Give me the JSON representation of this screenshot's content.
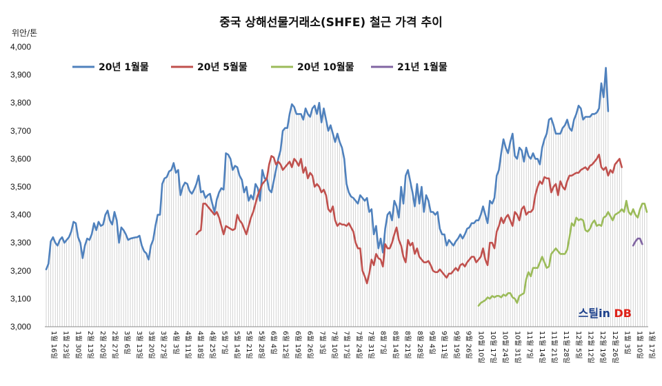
{
  "chart_data": {
    "type": "line",
    "title": "중국 상해선물거래소(SHFE) 철근 가격 추이",
    "unit_label": "위안/톤",
    "ylim": [
      3000,
      4000
    ],
    "yticks": [
      "3,000",
      "3,100",
      "3,200",
      "3,300",
      "3,400",
      "3,500",
      "3,600",
      "3,700",
      "3,800",
      "3,900",
      "4,000"
    ],
    "grid": "vertical-drop-lines",
    "legend_position": "top-left",
    "watermark": {
      "part1": "스틸in",
      "part2": " DB"
    },
    "x_tick_labels": [
      "1월 16일",
      "1월 23일",
      "1월 30일",
      "2월 13일",
      "2월 20일",
      "2월 27일",
      "3월 6일",
      "3월 13일",
      "3월 20일",
      "3월 27일",
      "4월 3일",
      "4월 11일",
      "4월 18일",
      "4월 25일",
      "5월 7일",
      "5월 14일",
      "5월 21일",
      "5월 28일",
      "6월 4일",
      "6월 12일",
      "6월 19일",
      "6월 26일",
      "7월 3일",
      "7월 10일",
      "7월 17일",
      "7월 24일",
      "7월 31일",
      "8월 7일",
      "8월 14일",
      "8월 21일",
      "8월 28일",
      "9월 4일",
      "9월 11일",
      "9월 19일",
      "9월 26일",
      "10월 10일",
      "10월 17일",
      "10월 24일",
      "10월 31일",
      "11월 7일",
      "11월 14일",
      "11월 21일",
      "11월 28일",
      "12월 5일",
      "12월 12일",
      "12월 19일",
      "12월 26일",
      "1월 3일",
      "1월 10일",
      "1월 17일"
    ],
    "series": [
      {
        "name": "20년 1월물",
        "color": "#4f81bd",
        "start_index": 0,
        "values": [
          3205,
          3225,
          3305,
          3320,
          3300,
          3290,
          3310,
          3320,
          3300,
          3310,
          3320,
          3340,
          3375,
          3370,
          3320,
          3300,
          3245,
          3290,
          3315,
          3310,
          3330,
          3370,
          3345,
          3375,
          3360,
          3365,
          3400,
          3415,
          3380,
          3365,
          3410,
          3380,
          3300,
          3355,
          3345,
          3330,
          3310,
          3315,
          3317,
          3319,
          3320,
          3325,
          3290,
          3270,
          3262,
          3240,
          3290,
          3310,
          3360,
          3400,
          3400,
          3510,
          3530,
          3535,
          3555,
          3560,
          3585,
          3550,
          3560,
          3470,
          3500,
          3515,
          3510,
          3485,
          3475,
          3490,
          3510,
          3540,
          3480,
          3485,
          3460,
          3470,
          3475,
          3440,
          3410,
          3455,
          3480,
          3495,
          3490,
          3620,
          3615,
          3600,
          3560,
          3575,
          3570,
          3540,
          3525,
          3480,
          3500,
          3450,
          3470,
          3455,
          3510,
          3495,
          3450,
          3560,
          3530,
          3530,
          3490,
          3480,
          3520,
          3560,
          3600,
          3630,
          3700,
          3710,
          3710,
          3760,
          3795,
          3785,
          3760,
          3760,
          3760,
          3740,
          3780,
          3760,
          3750,
          3780,
          3790,
          3760,
          3800,
          3730,
          3780,
          3740,
          3700,
          3720,
          3690,
          3660,
          3690,
          3660,
          3640,
          3600,
          3510,
          3480,
          3465,
          3460,
          3450,
          3440,
          3470,
          3460,
          3450,
          3460,
          3410,
          3420,
          3330,
          3360,
          3280,
          3315,
          3265,
          3350,
          3400,
          3410,
          3380,
          3450,
          3430,
          3390,
          3500,
          3440,
          3540,
          3560,
          3520,
          3480,
          3430,
          3510,
          3440,
          3500,
          3410,
          3470,
          3450,
          3410,
          3410,
          3400,
          3410,
          3350,
          3330,
          3330,
          3290,
          3310,
          3300,
          3290,
          3305,
          3315,
          3330,
          3315,
          3330,
          3350,
          3355,
          3370,
          3370,
          3380,
          3380,
          3400,
          3430,
          3400,
          3370,
          3450,
          3440,
          3460,
          3540,
          3560,
          3620,
          3670,
          3640,
          3620,
          3660,
          3690,
          3610,
          3600,
          3640,
          3630,
          3590,
          3640,
          3610,
          3600,
          3620,
          3600,
          3600,
          3580,
          3640,
          3670,
          3690,
          3740,
          3745,
          3720,
          3690,
          3690,
          3690,
          3710,
          3720,
          3740,
          3710,
          3700,
          3740,
          3760,
          3790,
          3780,
          3740,
          3750,
          3750,
          3750,
          3760,
          3760,
          3765,
          3780,
          3870,
          3820,
          3925,
          3770
        ]
      },
      {
        "name": "20년 5월물",
        "color": "#c0504d",
        "start_index": 66,
        "values": [
          3330,
          3340,
          3345,
          3440,
          3440,
          3430,
          3420,
          3410,
          3400,
          3410,
          3390,
          3360,
          3330,
          3360,
          3355,
          3350,
          3345,
          3350,
          3400,
          3380,
          3370,
          3350,
          3330,
          3360,
          3390,
          3410,
          3440,
          3470,
          3490,
          3510,
          3520,
          3530,
          3580,
          3610,
          3605,
          3580,
          3590,
          3580,
          3560,
          3570,
          3580,
          3590,
          3570,
          3600,
          3590,
          3575,
          3600,
          3550,
          3570,
          3530,
          3550,
          3540,
          3500,
          3510,
          3500,
          3480,
          3490,
          3470,
          3420,
          3410,
          3430,
          3380,
          3360,
          3370,
          3365,
          3365,
          3360,
          3370,
          3355,
          3340,
          3300,
          3280,
          3280,
          3200,
          3180,
          3155,
          3190,
          3240,
          3220,
          3260,
          3245,
          3240,
          3215,
          3295,
          3280,
          3280,
          3300,
          3330,
          3355,
          3310,
          3290,
          3250,
          3230,
          3310,
          3290,
          3300,
          3260,
          3280,
          3250,
          3240,
          3230,
          3230,
          3235,
          3220,
          3200,
          3195,
          3195,
          3205,
          3195,
          3185,
          3175,
          3190,
          3190,
          3200,
          3210,
          3200,
          3220,
          3225,
          3215,
          3230,
          3240,
          3250,
          3250,
          3230,
          3240,
          3250,
          3280,
          3240,
          3220,
          3300,
          3300,
          3280,
          3340,
          3360,
          3390,
          3370,
          3390,
          3400,
          3380,
          3360,
          3410,
          3400,
          3380,
          3420,
          3430,
          3400,
          3410,
          3410,
          3420,
          3470,
          3500,
          3520,
          3510,
          3535,
          3530,
          3530,
          3480,
          3500,
          3510,
          3470,
          3520,
          3500,
          3490,
          3520,
          3540,
          3540,
          3545,
          3550,
          3550,
          3560,
          3565,
          3570,
          3560,
          3575,
          3580,
          3590,
          3600,
          3615,
          3570,
          3560,
          3570,
          3540,
          3560,
          3550,
          3580,
          3590,
          3600,
          3570
        ]
      },
      {
        "name": "20년 10월물",
        "color": "#9bbb59",
        "start_index": 190,
        "values": [
          3075,
          3085,
          3090,
          3095,
          3105,
          3100,
          3110,
          3105,
          3110,
          3110,
          3105,
          3115,
          3110,
          3120,
          3120,
          3105,
          3100,
          3085,
          3110,
          3115,
          3120,
          3170,
          3195,
          3180,
          3210,
          3210,
          3210,
          3230,
          3250,
          3230,
          3210,
          3215,
          3260,
          3270,
          3280,
          3270,
          3260,
          3260,
          3260,
          3275,
          3320,
          3370,
          3360,
          3390,
          3380,
          3385,
          3380,
          3345,
          3340,
          3350,
          3370,
          3380,
          3360,
          3365,
          3360,
          3390,
          3395,
          3410,
          3395,
          3380,
          3400,
          3405,
          3410,
          3420,
          3410,
          3450,
          3410,
          3400,
          3420,
          3400,
          3390,
          3420,
          3440,
          3440,
          3410
        ]
      },
      {
        "name": "21년 1월물",
        "color": "#8064a2",
        "start_index": 258,
        "values": [
          3290,
          3305,
          3315,
          3315,
          3295
        ]
      }
    ]
  }
}
